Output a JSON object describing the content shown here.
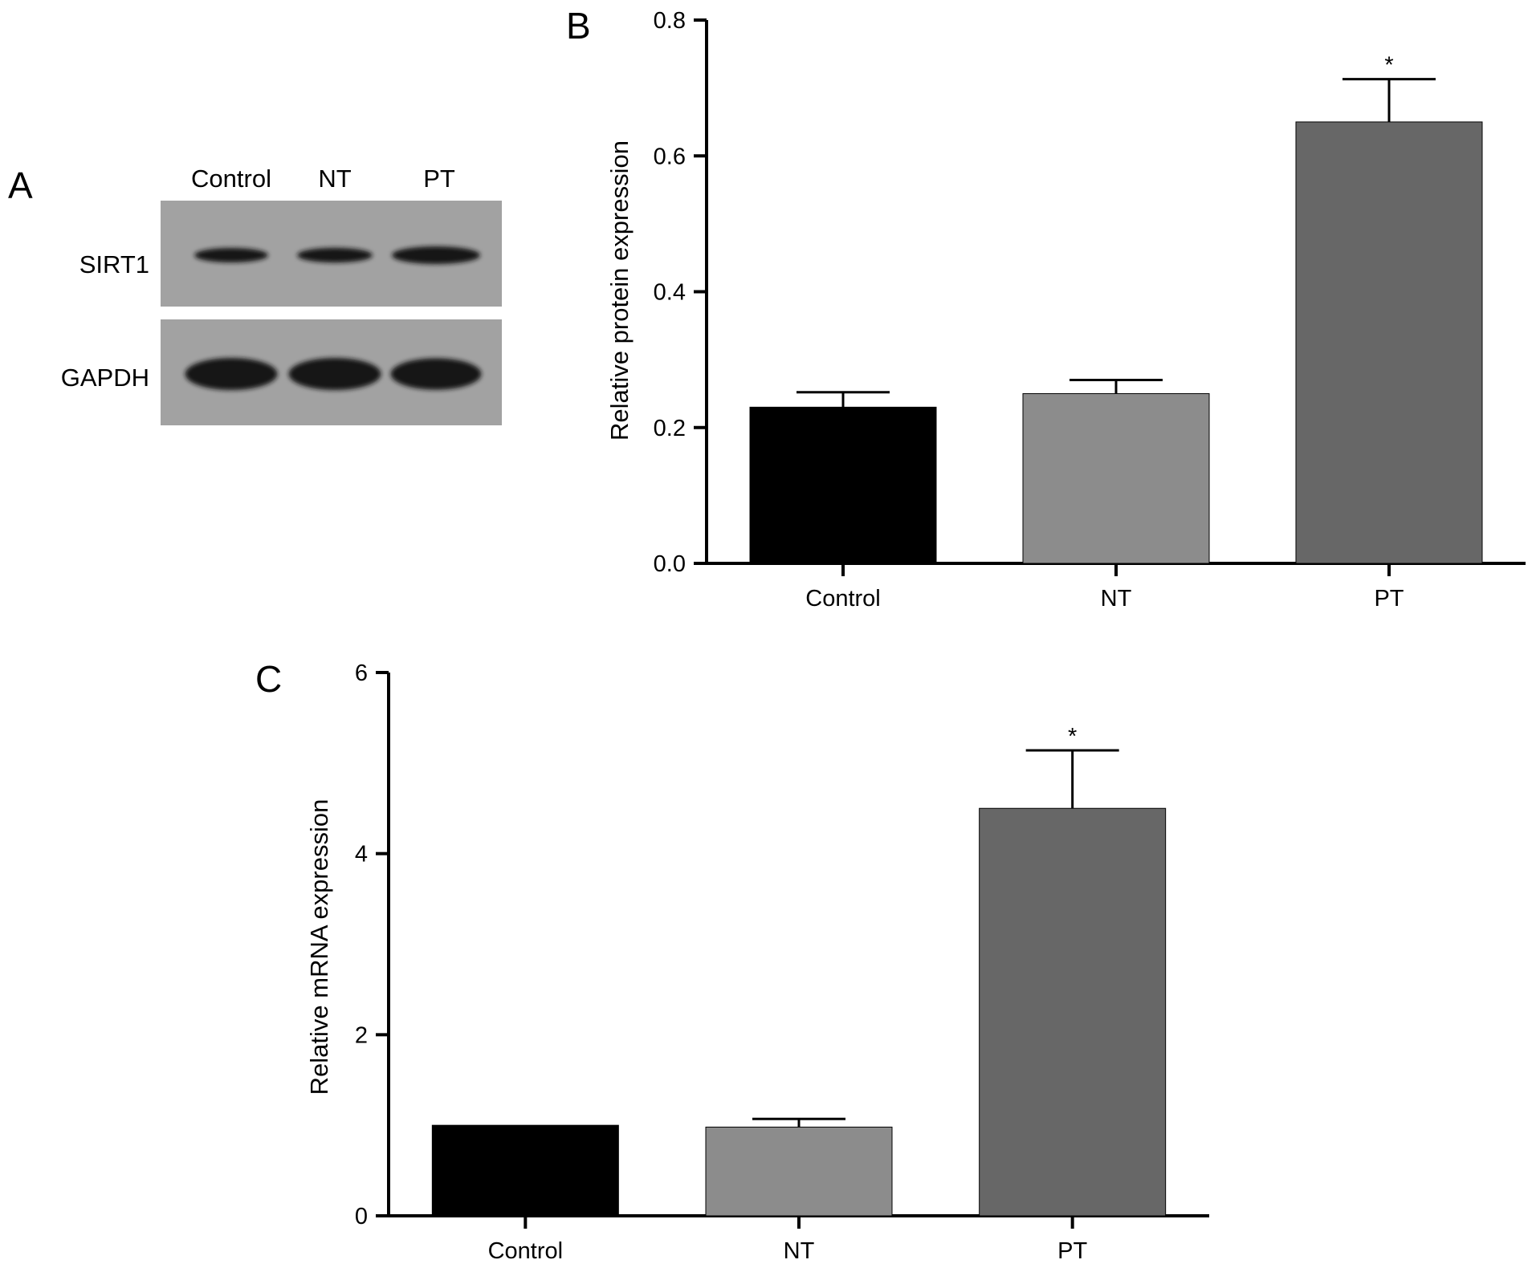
{
  "figure": {
    "panels": {
      "a": {
        "letter": "A"
      },
      "b": {
        "letter": "B"
      },
      "c": {
        "letter": "C"
      }
    }
  },
  "western_blot": {
    "lanes": [
      "Control",
      "NT",
      "PT"
    ],
    "rows": [
      {
        "label": "SIRT1",
        "relative_intensity": [
          0.55,
          0.6,
          1.0
        ]
      },
      {
        "label": "GAPDH",
        "relative_intensity": [
          1.0,
          1.0,
          0.95
        ]
      }
    ]
  },
  "colors": {
    "control": "#000000",
    "nt": "#8c8c8c",
    "pt": "#676767",
    "blot_background": "#a2a2a2",
    "band": "#141414"
  },
  "chart_data": [
    {
      "type": "bar",
      "panel": "B",
      "categories": [
        "Control",
        "NT",
        "PT"
      ],
      "values": [
        0.23,
        0.25,
        0.65
      ],
      "errors": [
        0.022,
        0.02,
        0.063
      ],
      "significance": [
        "",
        "",
        "*"
      ],
      "ylabel": "Relative protein expression",
      "xlabel": "",
      "ylim": [
        0,
        0.8
      ],
      "yticks": [
        0.0,
        0.2,
        0.4,
        0.6,
        0.8
      ],
      "ytick_labels": [
        "0.0",
        "0.2",
        "0.4",
        "0.6",
        "0.8"
      ],
      "grid": false
    },
    {
      "type": "bar",
      "panel": "C",
      "categories": [
        "Control",
        "NT",
        "PT"
      ],
      "values": [
        1.0,
        0.98,
        4.5
      ],
      "errors": [
        0,
        0.09,
        0.64
      ],
      "significance": [
        "",
        "",
        "*"
      ],
      "ylabel": "Relative mRNA expression",
      "xlabel": "",
      "ylim": [
        0,
        6
      ],
      "yticks": [
        0,
        2,
        4,
        6
      ],
      "ytick_labels": [
        "0",
        "2",
        "4",
        "6"
      ],
      "grid": false
    }
  ]
}
